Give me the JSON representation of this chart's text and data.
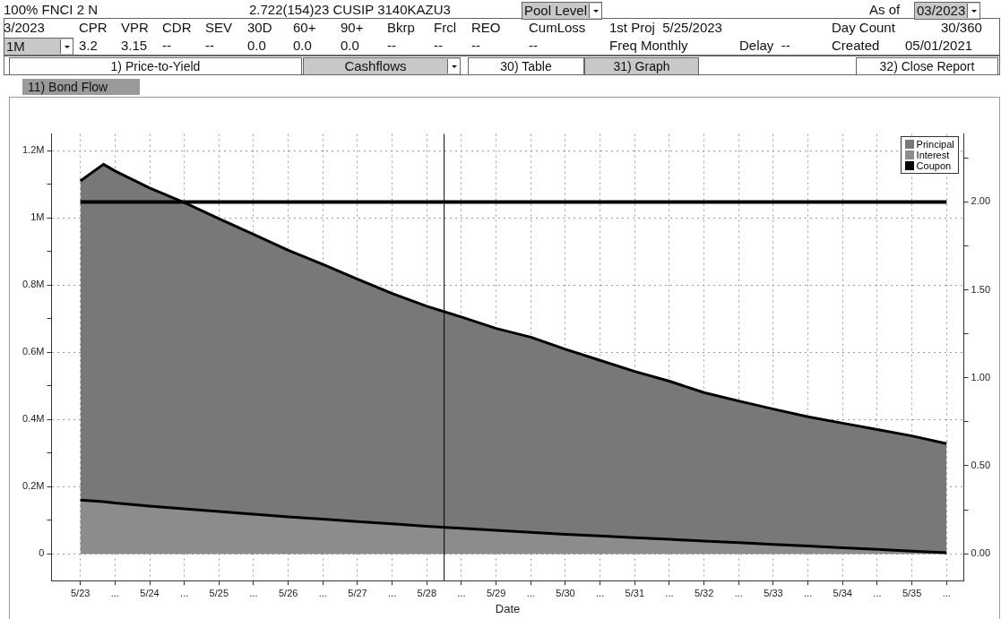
{
  "chart_data": {
    "type": "area",
    "xlabel": "Date",
    "legend": "top right",
    "grid": true,
    "x": [
      "2023-05",
      "2023-09",
      "2023-11",
      "2024-05",
      "2024-11",
      "2025-05",
      "2025-11",
      "2026-05",
      "2026-11",
      "2027-05",
      "2027-11",
      "2028-05",
      "2028-11",
      "2029-05",
      "2029-11",
      "2030-05",
      "2030-11",
      "2031-05",
      "2031-11",
      "2032-05",
      "2032-11",
      "2033-05",
      "2033-11",
      "2034-05",
      "2034-11",
      "2035-05",
      "2035-11"
    ],
    "series": [
      {
        "name": "Principal",
        "color": "#787878",
        "values": [
          1110000,
          1160000,
          1140000,
          1089000,
          1046000,
          998000,
          951000,
          904000,
          862000,
          818000,
          775000,
          737000,
          705000,
          671000,
          645000,
          609000,
          576000,
          543000,
          514000,
          480000,
          455000,
          431000,
          408000,
          389000,
          370000,
          351000,
          328000
        ]
      },
      {
        "name": "Interest",
        "color": "#8c8c8c",
        "values": [
          160000,
          155000,
          151000,
          142000,
          134000,
          126000,
          118000,
          110000,
          103000,
          96000,
          89000,
          82000,
          76000,
          70000,
          64000,
          58000,
          53000,
          48000,
          43000,
          38000,
          33000,
          28000,
          23000,
          18000,
          13000,
          8000,
          3000
        ]
      },
      {
        "name": "Coupon",
        "type": "line",
        "axis": "y2",
        "color": "#000000",
        "x": [
          "2023-05",
          "2035-11"
        ],
        "values": [
          2,
          2
        ]
      }
    ],
    "xlim": [
      "2022-12",
      "2036-02"
    ],
    "xticks": [
      {
        "value": "2023-05",
        "label": "5/23"
      },
      {
        "value": "2023-11",
        "label": "..."
      },
      {
        "value": "2024-05",
        "label": "5/24"
      },
      {
        "value": "2024-11",
        "label": "..."
      },
      {
        "value": "2025-05",
        "label": "5/25"
      },
      {
        "value": "2025-11",
        "label": "..."
      },
      {
        "value": "2026-05",
        "label": "5/26"
      },
      {
        "value": "2026-11",
        "label": "..."
      },
      {
        "value": "2027-05",
        "label": "5/27"
      },
      {
        "value": "2027-11",
        "label": "..."
      },
      {
        "value": "2028-05",
        "label": "5/28"
      },
      {
        "value": "2028-11",
        "label": "..."
      },
      {
        "value": "2029-05",
        "label": "5/29"
      },
      {
        "value": "2029-11",
        "label": "..."
      },
      {
        "value": "2030-05",
        "label": "5/30"
      },
      {
        "value": "2030-11",
        "label": "..."
      },
      {
        "value": "2031-05",
        "label": "5/31"
      },
      {
        "value": "2031-11",
        "label": "..."
      },
      {
        "value": "2032-05",
        "label": "5/32"
      },
      {
        "value": "2032-11",
        "label": "..."
      },
      {
        "value": "2033-05",
        "label": "5/33"
      },
      {
        "value": "2033-11",
        "label": "..."
      },
      {
        "value": "2034-05",
        "label": "5/34"
      },
      {
        "value": "2034-11",
        "label": "..."
      },
      {
        "value": "2035-05",
        "label": "5/35"
      },
      {
        "value": "2035-11",
        "label": "..."
      }
    ],
    "ylim": [
      -80000,
      1250000
    ],
    "yticks": [
      {
        "value": 0,
        "label": "0"
      },
      {
        "value": 100000,
        "label": null
      },
      {
        "value": 200000,
        "label": "0.2M"
      },
      {
        "value": 300000,
        "label": null
      },
      {
        "value": 400000,
        "label": "0.4M"
      },
      {
        "value": 500000,
        "label": null
      },
      {
        "value": 600000,
        "label": "0.6M"
      },
      {
        "value": 700000,
        "label": null
      },
      {
        "value": 800000,
        "label": "0.8M"
      },
      {
        "value": 900000,
        "label": null
      },
      {
        "value": 1000000,
        "label": "1M"
      },
      {
        "value": 1100000,
        "label": null
      },
      {
        "value": 1200000,
        "label": "1.2M"
      }
    ],
    "y2lim": [
      -0.153,
      2.386
    ],
    "y2ticks": [
      {
        "value": 0,
        "label": "0.00"
      },
      {
        "value": 0.25,
        "label": null
      },
      {
        "value": 0.5,
        "label": "0.50"
      },
      {
        "value": 0.75,
        "label": null
      },
      {
        "value": 1,
        "label": "1.00"
      },
      {
        "value": 1.25,
        "label": null
      },
      {
        "value": 1.5,
        "label": "1.50"
      },
      {
        "value": 1.75,
        "label": null
      },
      {
        "value": 2,
        "label": "2.00"
      },
      {
        "value": 2.25,
        "label": null
      }
    ],
    "ref_lines": [
      {
        "axis": "x",
        "value": "2028-08",
        "color": "#000000"
      }
    ],
    "annotations": [
      "100% FNCI 2 N",
      "2.722(154)23 CUSIP 3140KAZU3",
      "Pool Level",
      "As of",
      "03/2023",
      "3/2023",
      "CPR",
      "VPR",
      "CDR",
      "SEV",
      "30D",
      "60+",
      "90+",
      "Bkrp",
      "Frcl",
      "REO",
      "CumLoss",
      "1st Proj  5/25/2023",
      "Day Count",
      "30/360",
      "1M",
      "3.2",
      "3.15",
      "--",
      "--",
      "0.0",
      "0.0",
      "0.0",
      "--",
      "--",
      "--",
      "--",
      "Freq Monthly",
      "Delay  --",
      "Created",
      "05/01/2021",
      "1) Price-to-Yield",
      "Cashflows",
      "30) Table",
      "31) Graph",
      "32) Close Report",
      "11) Bond Flow"
    ]
  }
}
